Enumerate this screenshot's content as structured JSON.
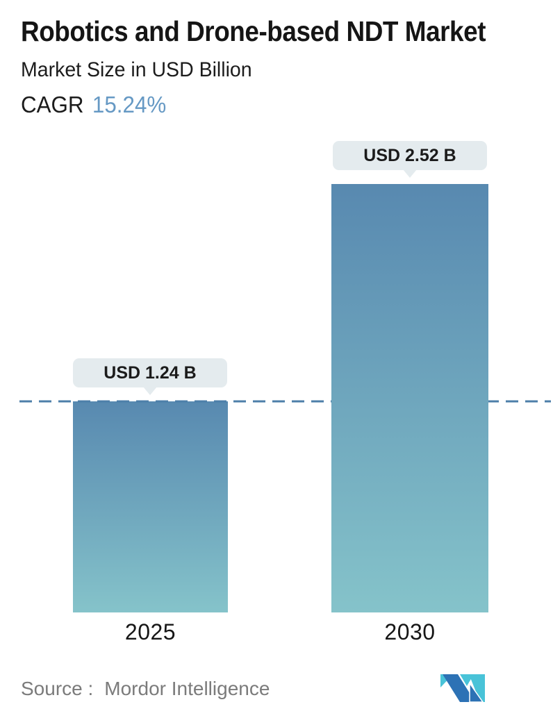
{
  "header": {
    "title": "Robotics and Drone-based NDT Market",
    "subtitle": "Market Size in USD Billion",
    "cagr_label": "CAGR",
    "cagr_value": "15.24%"
  },
  "chart_data": {
    "type": "bar",
    "categories": [
      "2025",
      "2030"
    ],
    "values": [
      1.24,
      2.52
    ],
    "value_labels": [
      "USD 1.24 B",
      "USD 2.52 B"
    ],
    "unit": "USD Billion",
    "title": "Robotics and Drone-based NDT Market",
    "subtitle": "Market Size in USD Billion",
    "cagr": "15.24%",
    "ylim": [
      0,
      2.52
    ],
    "grid": false,
    "legend": false,
    "reference_line": {
      "value": 1.24,
      "style": "dashed",
      "color": "#4d7fa9"
    },
    "bar_colors": {
      "top": "#5889b0",
      "bottom": "#85c3ca"
    }
  },
  "footer": {
    "source_label": "Source :",
    "source_value": "Mordor Intelligence"
  },
  "logo": {
    "name": "mordor-intelligence-logo",
    "colors": {
      "blue": "#2d72b5",
      "teal": "#49c3d8"
    }
  },
  "colors": {
    "title_text": "#151515",
    "cagr_value": "#6699c4",
    "tooltip_bg": "#e4ebee",
    "source_text": "#7b7b7b",
    "background": "#ffffff"
  }
}
